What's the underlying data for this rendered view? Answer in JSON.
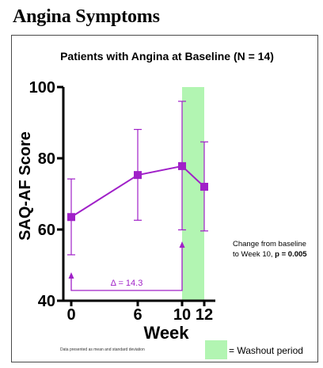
{
  "page": {
    "title": "Angina Symptoms"
  },
  "chart_data": {
    "type": "line",
    "title": "Patients with Angina at Baseline (N = 14)",
    "xlabel": "Week",
    "ylabel": "SAQ-AF Score",
    "x_ticks": [
      0,
      6,
      10,
      12
    ],
    "y_ticks": [
      40,
      60,
      80,
      100
    ],
    "xlim": [
      0,
      13
    ],
    "ylim": [
      40,
      100
    ],
    "series": [
      {
        "color": "#a020c8",
        "marker": "square",
        "x": [
          0,
          6,
          10,
          12
        ],
        "y": [
          63.5,
          75.3,
          77.8,
          72.0
        ],
        "error_low": [
          52.9,
          62.6,
          59.9,
          59.6
        ],
        "error_high": [
          74.2,
          88.1,
          96.0,
          84.6
        ]
      }
    ],
    "washout": {
      "x_start": 10,
      "x_end": 12,
      "color": "#b2f5b2"
    },
    "delta_annotation": {
      "label": "Δ = 14.3",
      "from_x": 0,
      "to_x": 10
    },
    "change_note": {
      "line1": "Change from baseline",
      "line2_prefix": "to Week 10, ",
      "line2_bold": "p = 0.005"
    },
    "footnote": "Data presented as mean and standard deviation",
    "legend": {
      "label": "= Washout period",
      "color": "#b2f5b2",
      "placement": "bottom-right"
    },
    "grid": false
  }
}
